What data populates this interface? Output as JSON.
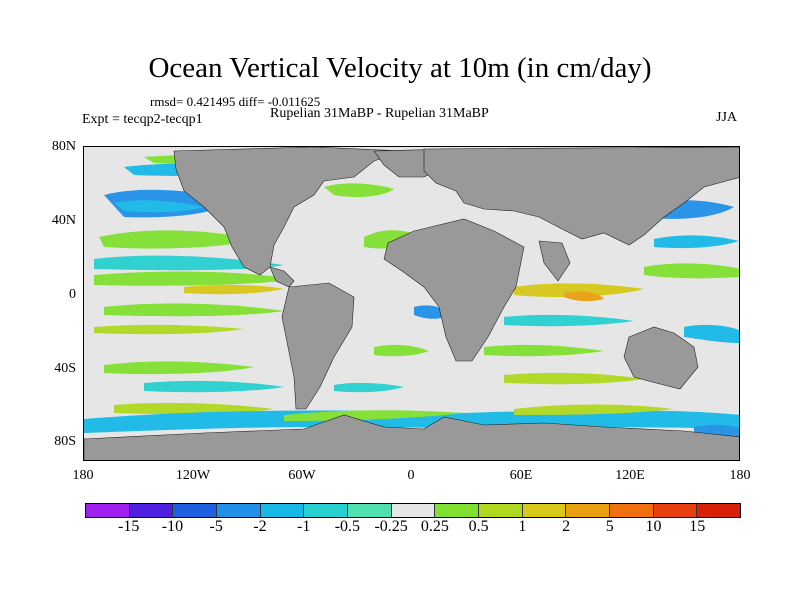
{
  "title": "Ocean Vertical Velocity at 10m (in cm/day)",
  "stats_line": "rmsd= 0.421495 diff= -0.011625",
  "expt_line": "Expt = tecqp2-tecqp1",
  "cases_line": "Rupelian  31MaBP - Rupelian  31MaBP",
  "season": "JJA",
  "lat_labels": [
    "80N",
    "40N",
    "0",
    "40S",
    "80S"
  ],
  "lon_labels": [
    "180",
    "120W",
    "60W",
    "0",
    "60E",
    "120E",
    "180"
  ],
  "colorbar": {
    "labels": [
      "-15",
      "-10",
      "-5",
      "-2",
      "-1",
      "-0.5",
      "-0.25",
      "0.25",
      "0.5",
      "1",
      "2",
      "5",
      "10",
      "15"
    ],
    "colors": [
      "#a020f0",
      "#5020e0",
      "#1e60e0",
      "#2090e8",
      "#18b8e8",
      "#28d0d0",
      "#50e0b0",
      "#e6e6e6",
      "#80e030",
      "#b0d820",
      "#d8c818",
      "#e8a010",
      "#f07010",
      "#e84010",
      "#d82008"
    ]
  },
  "colors": {
    "land": "#999999",
    "ocean_neutral": "#e6e6e6"
  }
}
